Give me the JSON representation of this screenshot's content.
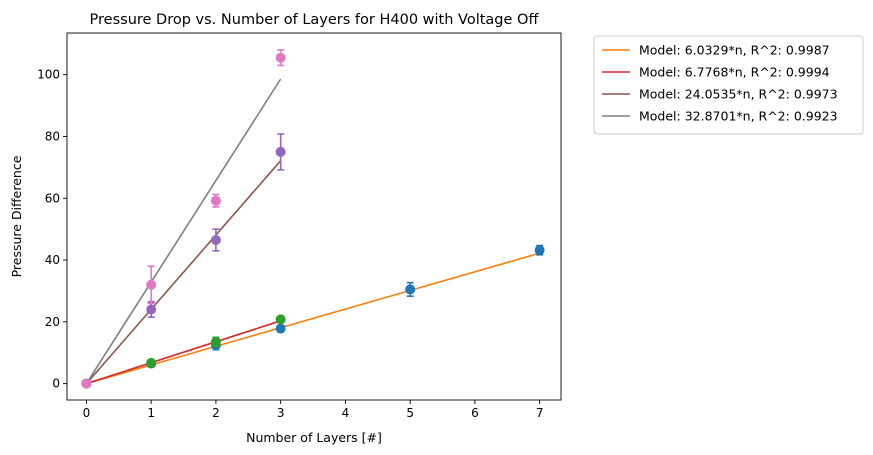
{
  "chart_data": {
    "type": "scatter",
    "title": "Pressure Drop vs. Number of Layers for H400 with Voltage Off",
    "xlabel": "Number of Layers [#]",
    "ylabel": "Pressure Difference",
    "xlim": [
      -0.3,
      7.33
    ],
    "ylim": [
      -5.3,
      113.5
    ],
    "xticks": [
      0,
      1,
      2,
      3,
      4,
      5,
      6,
      7
    ],
    "yticks": [
      0,
      20,
      40,
      60,
      80,
      100
    ],
    "grid": false,
    "legend_position": "outside-top-right",
    "measurements": [
      {
        "color": "#1f77b4",
        "points": [
          {
            "x": 0,
            "y": 0,
            "err": 0.8
          },
          {
            "x": 1,
            "y": 6.5,
            "err": 0.8
          },
          {
            "x": 2,
            "y": 12.5,
            "err": 1.5
          },
          {
            "x": 3,
            "y": 17.8,
            "err": 1.0
          },
          {
            "x": 5,
            "y": 30.5,
            "err": 2.2
          },
          {
            "x": 7,
            "y": 43.2,
            "err": 1.5
          }
        ]
      },
      {
        "color": "#2ca02c",
        "points": [
          {
            "x": 0,
            "y": 0,
            "err": 0.5
          },
          {
            "x": 1,
            "y": 6.7,
            "err": 0.8
          },
          {
            "x": 2,
            "y": 13.5,
            "err": 1.5
          },
          {
            "x": 3,
            "y": 20.8,
            "err": 0.8
          }
        ]
      },
      {
        "color": "#9467bd",
        "points": [
          {
            "x": 0,
            "y": 0,
            "err": 0.5
          },
          {
            "x": 1,
            "y": 24,
            "err": 2.5
          },
          {
            "x": 2,
            "y": 46.5,
            "err": 3.5
          },
          {
            "x": 3,
            "y": 75,
            "err": 5.8
          }
        ]
      },
      {
        "color": "#e377c2",
        "points": [
          {
            "x": 0,
            "y": 0,
            "err": 0.5
          },
          {
            "x": 1,
            "y": 32,
            "err": 6.0
          },
          {
            "x": 2,
            "y": 59.2,
            "err": 2.0
          },
          {
            "x": 3,
            "y": 105.5,
            "err": 2.5
          }
        ]
      }
    ],
    "series": [
      {
        "name": "Model: 6.0329*n, R^2: 0.9987",
        "color": "#ff7f0e",
        "slope": 6.0329,
        "x": [
          0,
          7
        ]
      },
      {
        "name": "Model: 6.7768*n, R^2: 0.9994",
        "color": "#d62728",
        "slope": 6.7768,
        "x": [
          0,
          3
        ]
      },
      {
        "name": "Model: 24.0535*n, R^2: 0.9973",
        "color": "#8c564b",
        "slope": 24.0535,
        "x": [
          0,
          3
        ]
      },
      {
        "name": "Model: 32.8701*n, R^2: 0.9923",
        "color": "#7f7f7f",
        "slope": 32.8701,
        "x": [
          0,
          3
        ]
      }
    ]
  }
}
